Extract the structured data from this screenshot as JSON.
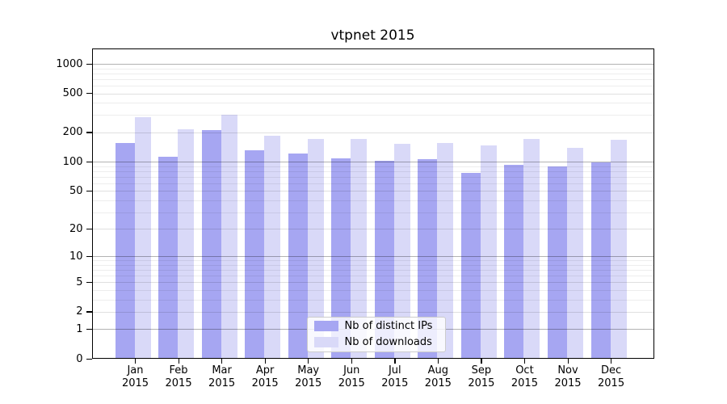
{
  "title": "vtpnet 2015",
  "chart_data": {
    "type": "bar",
    "title": "vtpnet 2015",
    "xlabel": "",
    "ylabel": "",
    "x_months": [
      "Jan",
      "Feb",
      "Mar",
      "Apr",
      "May",
      "Jun",
      "Jul",
      "Aug",
      "Sep",
      "Oct",
      "Nov",
      "Dec"
    ],
    "x_year": "2015",
    "categories": [
      "Jan 2015",
      "Feb 2015",
      "Mar 2015",
      "Apr 2015",
      "May 2015",
      "Jun 2015",
      "Jul 2015",
      "Aug 2015",
      "Sep 2015",
      "Oct 2015",
      "Nov 2015",
      "Dec 2015"
    ],
    "series": [
      {
        "name": "Nb of distinct IPs",
        "color": "#a6a6f2",
        "values": [
          155,
          112,
          212,
          130,
          121,
          108,
          103,
          107,
          77,
          93,
          89,
          98
        ]
      },
      {
        "name": "Nb of downloads",
        "color": "#d9d9f8",
        "values": [
          285,
          215,
          305,
          184,
          170,
          171,
          152,
          156,
          148,
          172,
          138,
          168
        ]
      }
    ],
    "y_ticks": [
      0,
      1,
      2,
      5,
      10,
      20,
      50,
      100,
      200,
      500,
      1000
    ],
    "y_scale": "log1p",
    "ylim": [
      0,
      1450
    ],
    "grid": "on",
    "legend_position": "lower-center"
  }
}
